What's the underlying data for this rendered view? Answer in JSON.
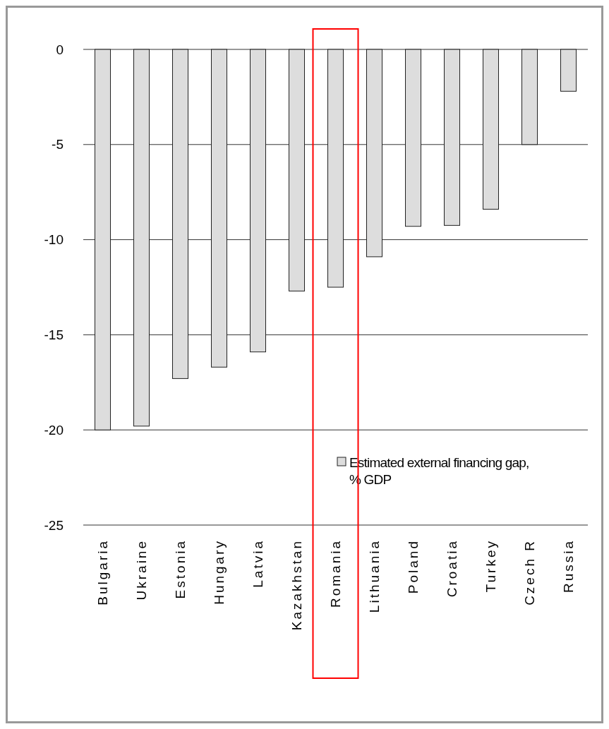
{
  "chart_data": {
    "type": "bar",
    "categories": [
      "Bulgaria",
      "Ukraine",
      "Estonia",
      "Hungary",
      "Latvia",
      "Kazakhstan",
      "Romania",
      "Lithuania",
      "Poland",
      "Croatia",
      "Turkey",
      "Czech R",
      "Russia"
    ],
    "series": [
      {
        "name": "Estimated external financing gap, % GDP",
        "color": "#dddddd",
        "values": [
          -20.0,
          -19.8,
          -17.3,
          -16.7,
          -15.9,
          -12.7,
          -12.5,
          -10.9,
          -9.3,
          -9.25,
          -8.4,
          -5.0,
          -2.2
        ]
      }
    ],
    "ylim": [
      -25,
      0
    ],
    "yticks": [
      0,
      -5,
      -10,
      -15,
      -20,
      -25
    ],
    "grid": "y",
    "legend": "bottom right"
  }
}
